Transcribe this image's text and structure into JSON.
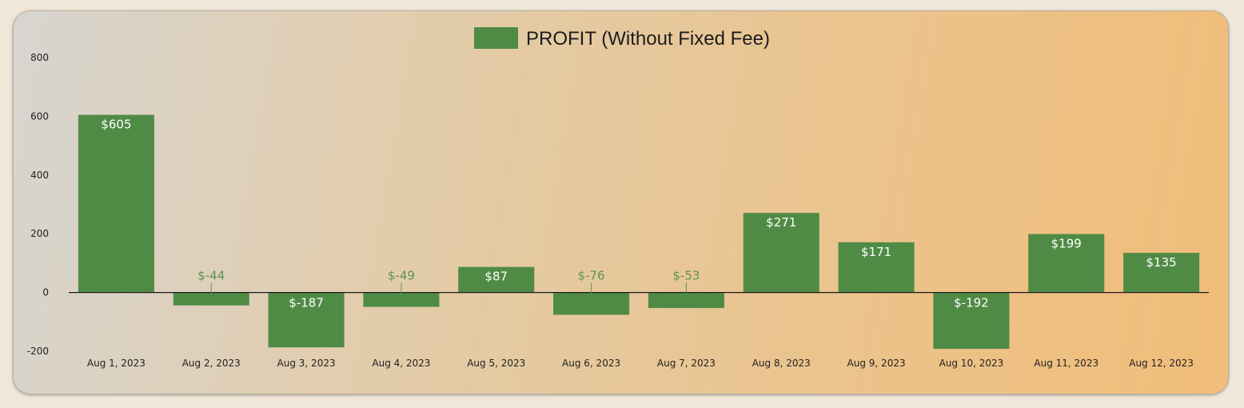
{
  "colors": {
    "bar": "#508b46",
    "label_inside": "#ffffff",
    "label_outside": "#5c9450",
    "axis": "#1c1c1c"
  },
  "chart_data": {
    "type": "bar",
    "categories": [
      "Aug 1, 2023",
      "Aug 2, 2023",
      "Aug 3, 2023",
      "Aug 4, 2023",
      "Aug 5, 2023",
      "Aug 6, 2023",
      "Aug 7, 2023",
      "Aug 8, 2023",
      "Aug 9, 2023",
      "Aug 10, 2023",
      "Aug 11, 2023",
      "Aug 12, 2023"
    ],
    "series": [
      {
        "name": "PROFIT (Without Fixed Fee)",
        "values": [
          605,
          -44,
          -187,
          -49,
          87,
          -76,
          -53,
          271,
          171,
          -192,
          199,
          135
        ]
      }
    ],
    "data_labels": [
      "$605",
      "$-44",
      "$-187",
      "$-49",
      "$87",
      "$-76",
      "$-53",
      "$271",
      "$171",
      "$-192",
      "$199",
      "$135"
    ],
    "y_ticks": [
      "800",
      "600",
      "400",
      "200",
      "0",
      "-200"
    ],
    "ylim": [
      -200,
      800
    ],
    "grid": false,
    "legend_position": "top-center"
  }
}
